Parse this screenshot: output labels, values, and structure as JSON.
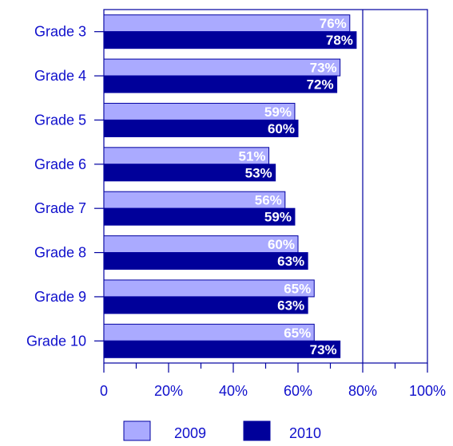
{
  "colors": {
    "series_2009": "#aaaaff",
    "series_2010": "#00009a",
    "axis": "#0000a0",
    "text": "#1010cc",
    "label_2009": "#ffffff",
    "label_2010": "#ffffff"
  },
  "chart_data": {
    "type": "bar",
    "orientation": "horizontal",
    "categories": [
      "Grade 3",
      "Grade 4",
      "Grade 5",
      "Grade 6",
      "Grade 7",
      "Grade 8",
      "Grade 9",
      "Grade 10"
    ],
    "series": [
      {
        "name": "2009",
        "values": [
          76,
          73,
          59,
          51,
          56,
          60,
          65,
          65
        ],
        "labels": [
          "76%",
          "73%",
          "59%",
          "51%",
          "56%",
          "60%",
          "65%",
          "65%"
        ]
      },
      {
        "name": "2010",
        "values": [
          78,
          72,
          60,
          53,
          59,
          63,
          63,
          73
        ],
        "labels": [
          "78%",
          "72%",
          "60%",
          "53%",
          "59%",
          "63%",
          "63%",
          "73%"
        ]
      }
    ],
    "xlim": [
      0,
      100
    ],
    "xticks": [
      0,
      20,
      40,
      60,
      80,
      100
    ],
    "xtick_labels": [
      "0",
      "20%",
      "40%",
      "60%",
      "80%",
      "100%"
    ],
    "reference_line": 80,
    "title": "",
    "xlabel": "",
    "ylabel": "",
    "grid": false,
    "legend": {
      "placement": "bottom",
      "entries": [
        "2009",
        "2010"
      ]
    }
  }
}
